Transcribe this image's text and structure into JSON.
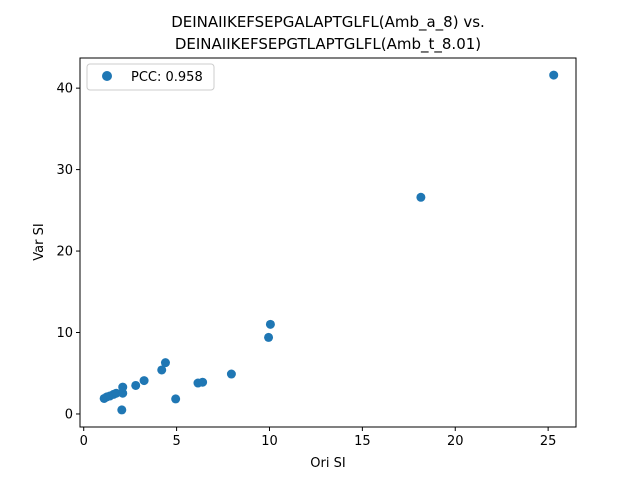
{
  "chart_data": {
    "type": "scatter",
    "title_line1": "DEINAIIKEFSEPGALAPTGLFL(Amb_a_8) vs.",
    "title_line2": "DEINAIIKEFSEPGTLAPTGLFL(Amb_t_8.01)",
    "xlabel": "Ori SI",
    "ylabel": "Var SI",
    "xlim": [
      -0.2,
      26.5
    ],
    "ylim": [
      -1.6,
      43.7
    ],
    "xticks": [
      0,
      5,
      10,
      15,
      20,
      25
    ],
    "yticks": [
      0,
      10,
      20,
      30,
      40
    ],
    "grid": false,
    "legend_position": "top-left",
    "series": [
      {
        "name": "PCC: 0.958",
        "color": "#1f77b4",
        "points": [
          [
            1.1,
            1.9
          ],
          [
            1.25,
            2.1
          ],
          [
            1.4,
            2.2
          ],
          [
            1.6,
            2.4
          ],
          [
            1.75,
            2.55
          ],
          [
            2.1,
            2.55
          ],
          [
            2.1,
            3.3
          ],
          [
            2.05,
            0.5
          ],
          [
            2.8,
            3.5
          ],
          [
            3.25,
            4.1
          ],
          [
            4.2,
            5.4
          ],
          [
            4.4,
            6.3
          ],
          [
            4.95,
            1.85
          ],
          [
            6.15,
            3.8
          ],
          [
            6.4,
            3.9
          ],
          [
            7.95,
            4.9
          ],
          [
            9.95,
            9.4
          ],
          [
            10.05,
            11.0
          ],
          [
            18.15,
            26.6
          ],
          [
            25.3,
            41.6
          ]
        ]
      }
    ]
  }
}
